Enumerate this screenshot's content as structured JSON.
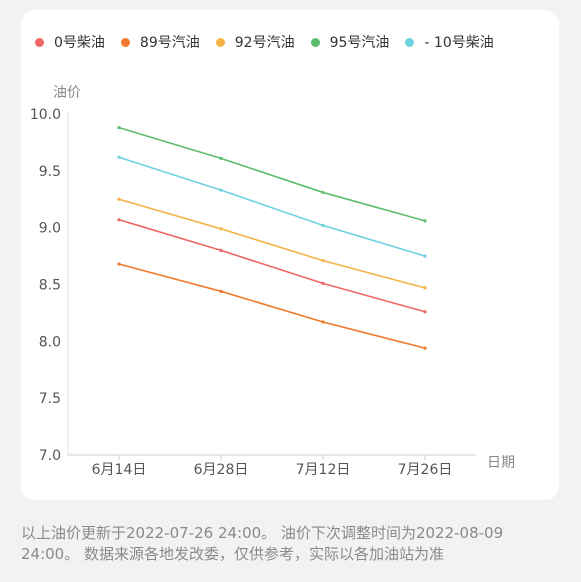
{
  "chart_data": {
    "type": "line",
    "ylabel": "油价",
    "xlabel": "日期",
    "categories": [
      "6月14日",
      "6月28日",
      "7月12日",
      "7月26日"
    ],
    "ylim": [
      7.0,
      10.0
    ],
    "yticks": [
      "7.0",
      "7.5",
      "8.0",
      "8.5",
      "9.0",
      "9.5",
      "10.0"
    ],
    "grid": false,
    "legend_position": "top",
    "series": [
      {
        "name": "0号柴油",
        "color": "#ee6666",
        "values": [
          9.07,
          8.8,
          8.51,
          8.26
        ]
      },
      {
        "name": "89号汽油",
        "color": "#f07a2e",
        "values": [
          8.68,
          8.44,
          8.17,
          7.94
        ]
      },
      {
        "name": "92号汽油",
        "color": "#f5b347",
        "values": [
          9.25,
          8.99,
          8.71,
          8.47
        ]
      },
      {
        "name": "95号汽油",
        "color": "#5dbd6f",
        "values": [
          9.88,
          9.61,
          9.31,
          9.06
        ]
      },
      {
        "name": "- 10号柴油",
        "color": "#6fd0df",
        "values": [
          9.62,
          9.33,
          9.02,
          8.75
        ]
      }
    ]
  },
  "footer": {
    "note": "以上油价更新于2022-07-26 24:00。 油价下次调整时间为2022-08-09 24:00。 数据来源各地发改委，仅供参考，实际以各加油站为准"
  }
}
